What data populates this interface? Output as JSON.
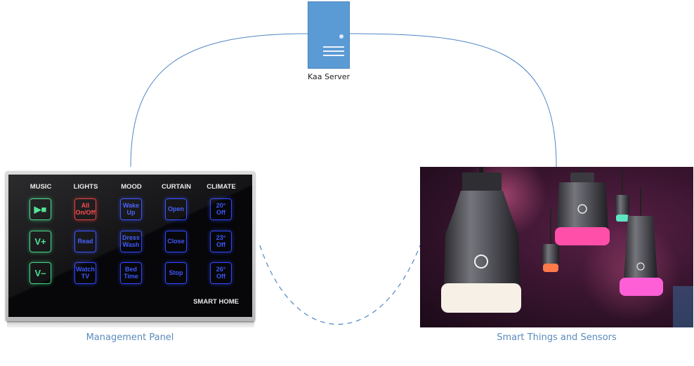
{
  "server": {
    "label": "Kaa Server",
    "icon": "server-icon"
  },
  "management_panel": {
    "caption": "Management Panel",
    "columns": [
      "MUSIC",
      "LIGHTS",
      "MOOD",
      "CURTAIN",
      "CLIMATE"
    ],
    "buttons": [
      [
        "▶■",
        "All\nOn/Off",
        "Wake\nUp",
        "Open",
        "20°\nOff"
      ],
      [
        "V+",
        "Read",
        "Dress\nWash",
        "Close",
        "23°\nOff"
      ],
      [
        "V–",
        "Watch\nTV",
        "Bed\nTime",
        "Stop",
        "26°\nOff"
      ]
    ],
    "brand": "SMART HOME"
  },
  "smart_things": {
    "caption": "Smart Things and Sensors",
    "image": "smart-light-bulbs-photo"
  },
  "colors": {
    "connector": "#4f86c6",
    "caption": "#5b8bbd",
    "server_body": "#5b9bd5",
    "button_green": "#3fe08a",
    "button_red": "#ff3b3b",
    "button_blue": "#3d57ff"
  }
}
